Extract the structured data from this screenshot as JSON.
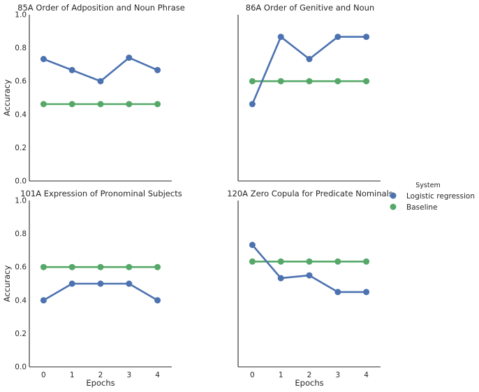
{
  "chart_data": [
    {
      "type": "line",
      "title": "85A Order of Adposition and Noun Phrase",
      "xlabel": "",
      "ylabel": "Accuracy",
      "x": [
        0,
        1,
        2,
        3,
        4
      ],
      "ylim": [
        0,
        1.0
      ],
      "series": [
        {
          "name": "Logistic regression",
          "values": [
            0.733,
            0.667,
            0.6,
            0.741,
            0.667
          ]
        },
        {
          "name": "Baseline",
          "values": [
            0.462,
            0.462,
            0.462,
            0.462,
            0.462
          ]
        }
      ]
    },
    {
      "type": "line",
      "title": "86A Order of Genitive and Noun",
      "xlabel": "",
      "ylabel": "",
      "x": [
        0,
        1,
        2,
        3,
        4
      ],
      "ylim": [
        0,
        1.0
      ],
      "series": [
        {
          "name": "Logistic regression",
          "values": [
            0.462,
            0.867,
            0.733,
            0.867,
            0.867
          ]
        },
        {
          "name": "Baseline",
          "values": [
            0.6,
            0.6,
            0.6,
            0.6,
            0.6
          ]
        }
      ]
    },
    {
      "type": "line",
      "title": "101A Expression of Pronominal Subjects",
      "xlabel": "Epochs",
      "ylabel": "Accuracy",
      "x": [
        0,
        1,
        2,
        3,
        4
      ],
      "ylim": [
        0,
        1.0
      ],
      "series": [
        {
          "name": "Logistic regression",
          "values": [
            0.4,
            0.5,
            0.5,
            0.5,
            0.4
          ]
        },
        {
          "name": "Baseline",
          "values": [
            0.6,
            0.6,
            0.6,
            0.6,
            0.6
          ]
        }
      ]
    },
    {
      "type": "line",
      "title": "120A Zero Copula for Predicate Nominals",
      "xlabel": "Epochs",
      "ylabel": "",
      "x": [
        0,
        1,
        2,
        3,
        4
      ],
      "ylim": [
        0,
        1.0
      ],
      "series": [
        {
          "name": "Logistic regression",
          "values": [
            0.733,
            0.533,
            0.55,
            0.45,
            0.45
          ]
        },
        {
          "name": "Baseline",
          "values": [
            0.633,
            0.633,
            0.633,
            0.633,
            0.633
          ]
        }
      ]
    }
  ],
  "y_ticks": [
    "0.0",
    "0.2",
    "0.4",
    "0.6",
    "0.8",
    "1.0"
  ],
  "x_ticks": [
    "0",
    "1",
    "2",
    "3",
    "4"
  ],
  "legend": {
    "title": "System",
    "placement": "right",
    "entries": [
      {
        "label": "Logistic regression",
        "color": "#4c72b0"
      },
      {
        "label": "Baseline",
        "color": "#55a868"
      }
    ]
  },
  "colors": {
    "series": [
      "#4c72b0",
      "#55a868"
    ],
    "axes": "#262626",
    "background": "#ffffff"
  }
}
